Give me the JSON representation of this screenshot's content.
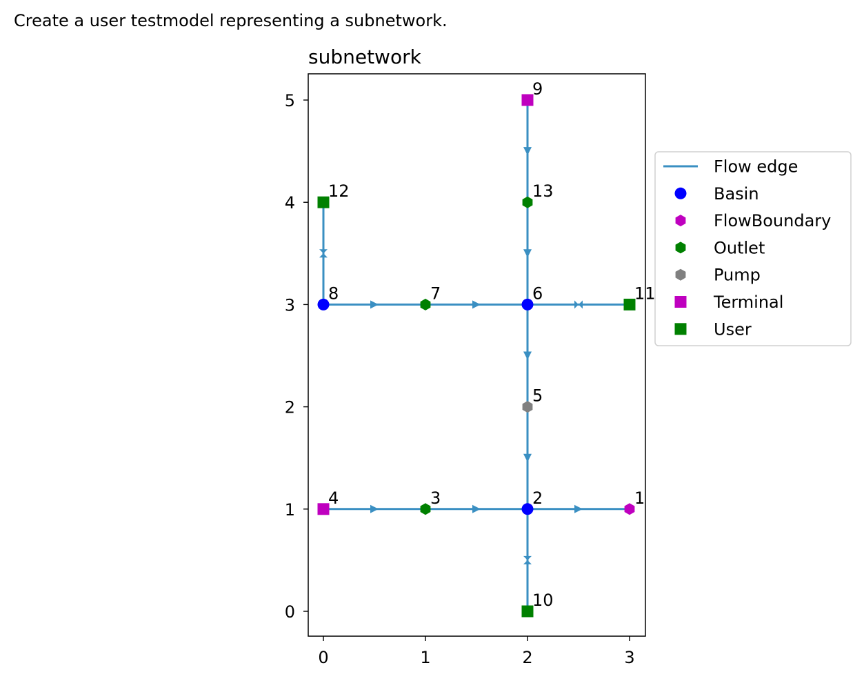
{
  "caption": "Create a user testmodel representing a subnetwork.",
  "chart_data": {
    "type": "network",
    "title": "subnetwork",
    "xlabel": "",
    "ylabel": "",
    "xlim": [
      -0.15,
      3.15
    ],
    "ylim": [
      -0.25,
      5.25
    ],
    "xticks": [
      0,
      1,
      2,
      3
    ],
    "yticks": [
      0,
      1,
      2,
      3,
      4,
      5
    ],
    "grid": false,
    "legend_position": "right",
    "legend": [
      {
        "label": "Flow edge",
        "kind": "line",
        "color": "#3a8fc2"
      },
      {
        "label": "Basin",
        "kind": "circle",
        "color": "#0000ff"
      },
      {
        "label": "FlowBoundary",
        "kind": "hexagon",
        "color": "#bf00bf"
      },
      {
        "label": "Outlet",
        "kind": "hexagon",
        "color": "#008000"
      },
      {
        "label": "Pump",
        "kind": "hexagon",
        "color": "#808080"
      },
      {
        "label": "Terminal",
        "kind": "square",
        "color": "#bf00bf"
      },
      {
        "label": "User",
        "kind": "square",
        "color": "#008000"
      }
    ],
    "nodes": [
      {
        "id": "1",
        "x": 3,
        "y": 1,
        "type": "FlowBoundary"
      },
      {
        "id": "2",
        "x": 2,
        "y": 1,
        "type": "Basin"
      },
      {
        "id": "3",
        "x": 1,
        "y": 1,
        "type": "Outlet"
      },
      {
        "id": "4",
        "x": 0,
        "y": 1,
        "type": "Terminal"
      },
      {
        "id": "5",
        "x": 2,
        "y": 2,
        "type": "Pump"
      },
      {
        "id": "6",
        "x": 2,
        "y": 3,
        "type": "Basin"
      },
      {
        "id": "7",
        "x": 1,
        "y": 3,
        "type": "Outlet"
      },
      {
        "id": "8",
        "x": 0,
        "y": 3,
        "type": "Basin"
      },
      {
        "id": "9",
        "x": 2,
        "y": 5,
        "type": "Terminal"
      },
      {
        "id": "10",
        "x": 2,
        "y": 0,
        "type": "User"
      },
      {
        "id": "11",
        "x": 3,
        "y": 3,
        "type": "User"
      },
      {
        "id": "12",
        "x": 0,
        "y": 4,
        "type": "User"
      },
      {
        "id": "13",
        "x": 2,
        "y": 4,
        "type": "Outlet"
      }
    ],
    "edges": [
      {
        "from": "1",
        "to": "2"
      },
      {
        "from": "2",
        "to": "3"
      },
      {
        "from": "3",
        "to": "4"
      },
      {
        "from": "2",
        "to": "5"
      },
      {
        "from": "5",
        "to": "6"
      },
      {
        "from": "6",
        "to": "7"
      },
      {
        "from": "7",
        "to": "8"
      },
      {
        "from": "6",
        "to": "13"
      },
      {
        "from": "13",
        "to": "9"
      },
      {
        "from": "2",
        "to": "10",
        "bidirectional": true
      },
      {
        "from": "6",
        "to": "11",
        "bidirectional": true
      },
      {
        "from": "8",
        "to": "12",
        "bidirectional": true
      }
    ]
  }
}
